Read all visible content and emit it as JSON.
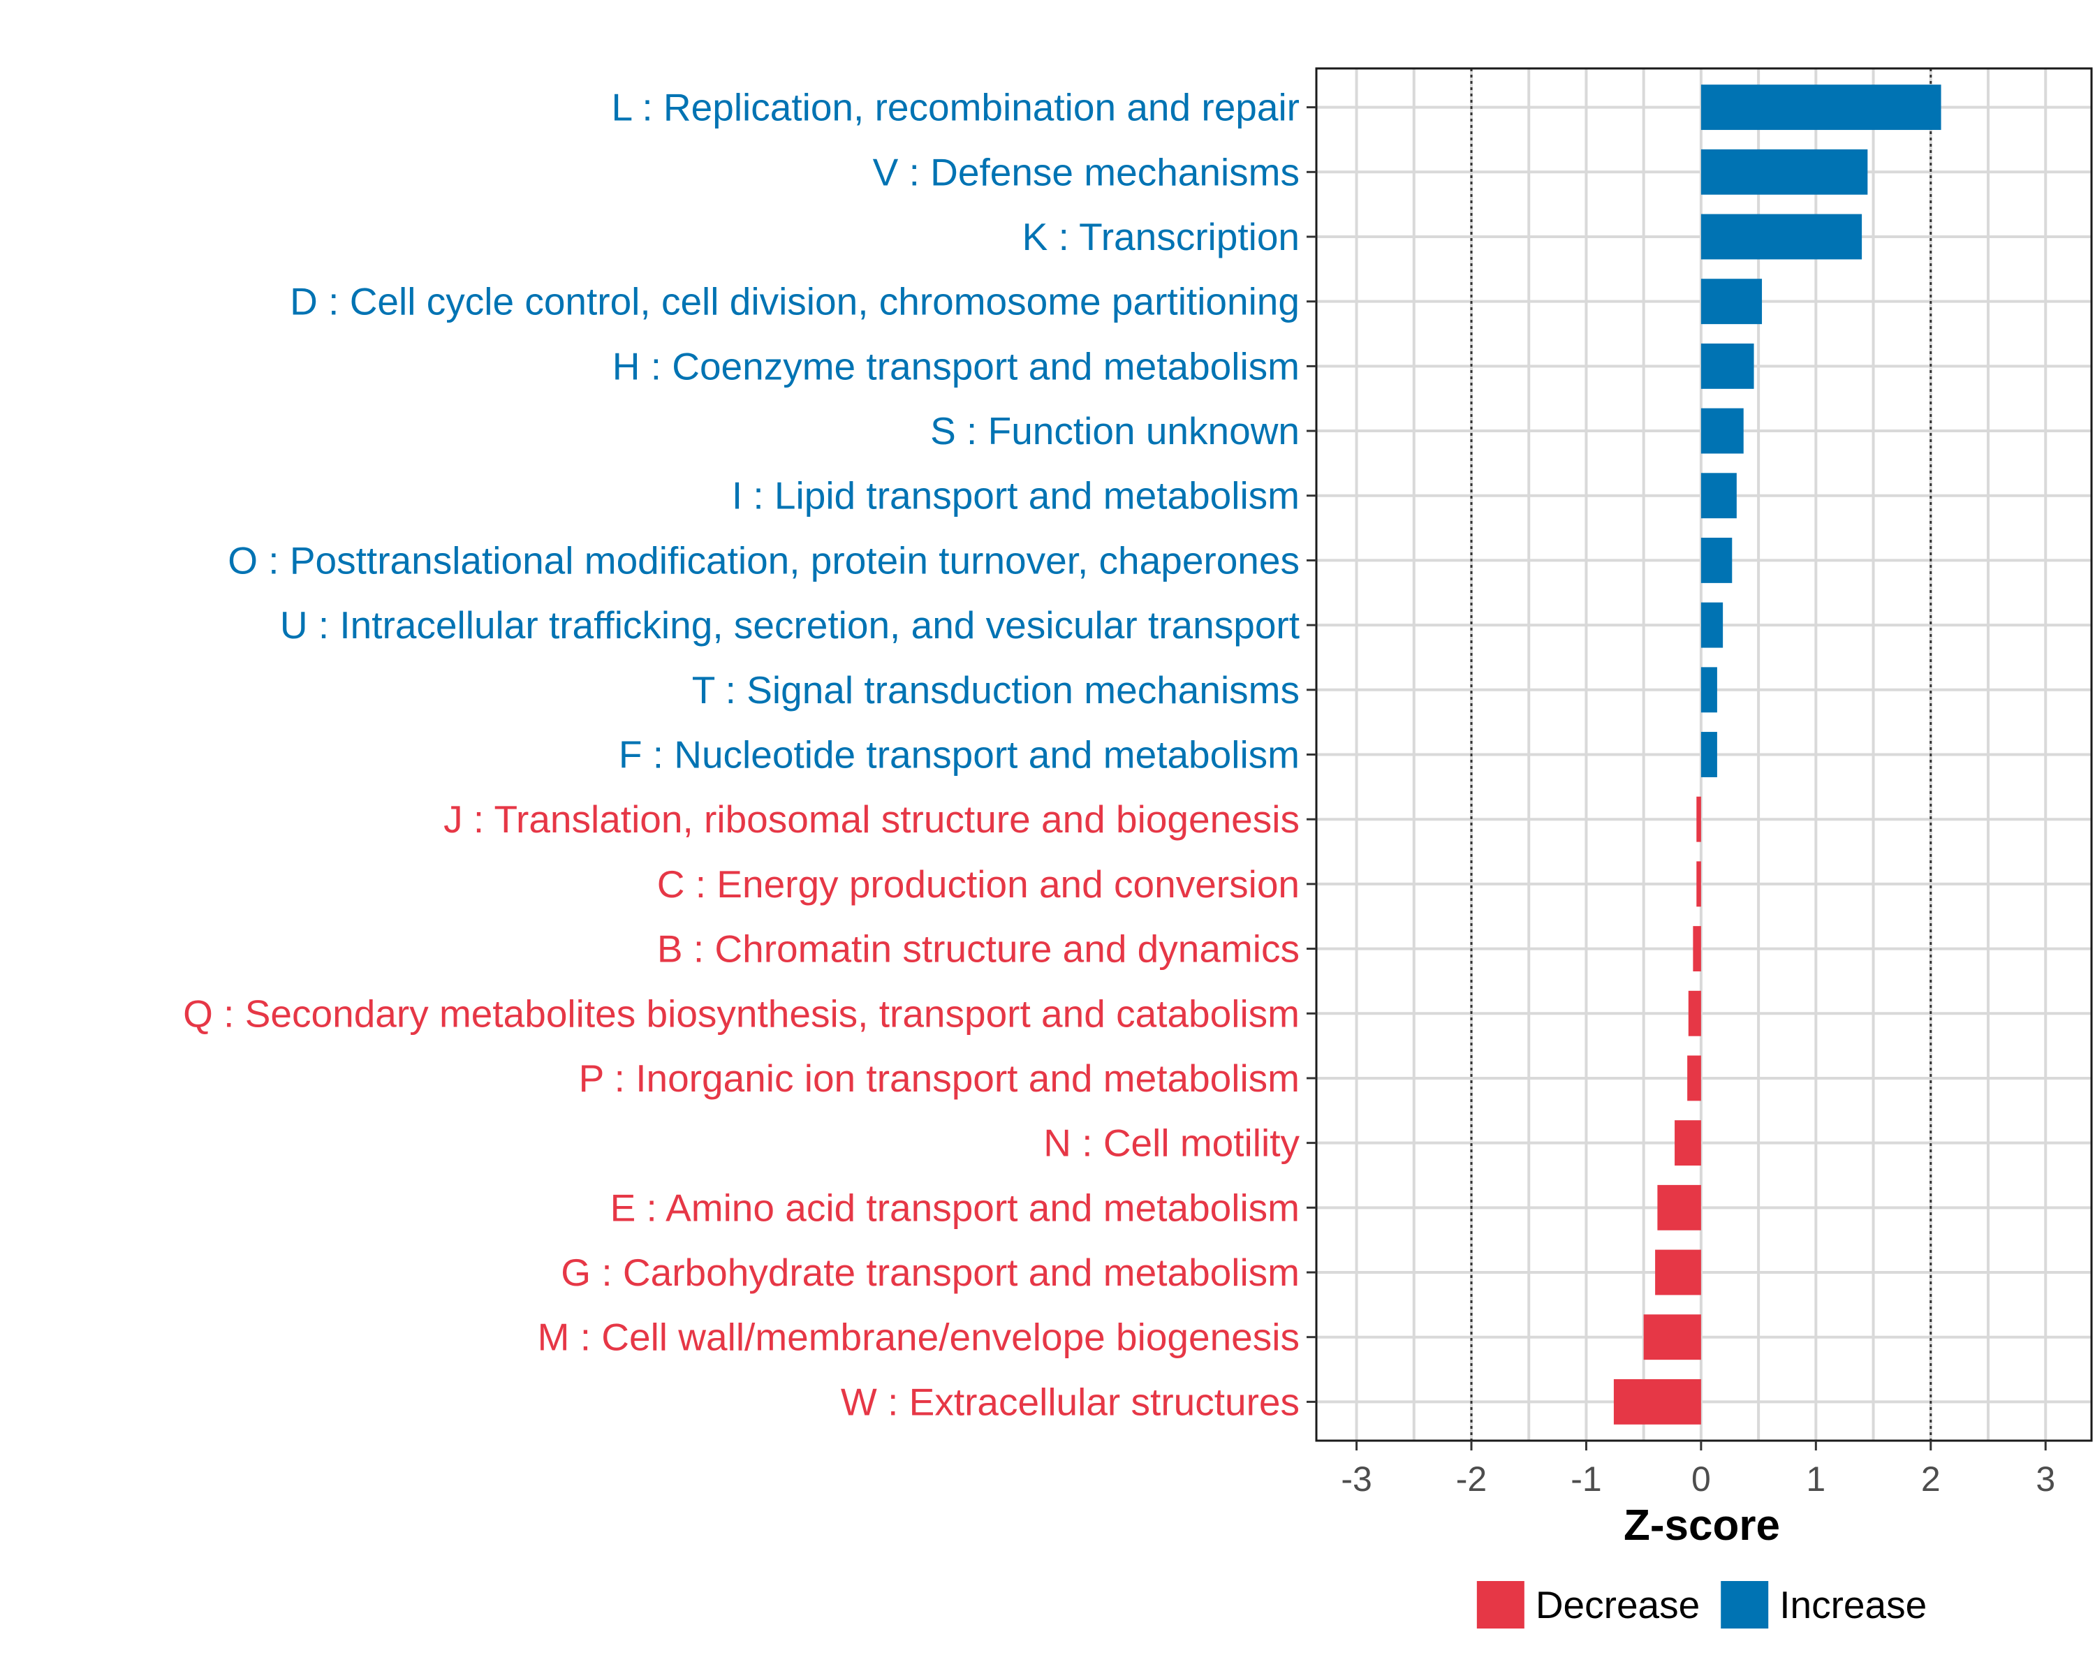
{
  "chart_data": {
    "type": "bar",
    "orientation": "horizontal",
    "xlabel": "Z-score",
    "xlim": [
      -3.35,
      3.4
    ],
    "xticks": [
      -3,
      -2,
      -1,
      0,
      1,
      2,
      3
    ],
    "xtick_labels": [
      "-3",
      "-2",
      "-1",
      "0",
      "1",
      "2",
      "3"
    ],
    "reference_lines": [
      -2,
      2
    ],
    "grid": true,
    "legend_position": "bottom",
    "colors": {
      "Increase": "#0073b3",
      "Decrease": "#e63746"
    },
    "legend": [
      {
        "label": "Decrease",
        "color": "#e63746"
      },
      {
        "label": "Increase",
        "color": "#0073b3"
      }
    ],
    "categories": [
      "L : Replication, recombination and repair",
      "V : Defense mechanisms",
      "K : Transcription",
      "D : Cell cycle control, cell division, chromosome partitioning",
      "H : Coenzyme transport and metabolism",
      "S : Function unknown",
      "I : Lipid transport and metabolism",
      "O : Posttranslational modification, protein turnover, chaperones",
      "U : Intracellular trafficking, secretion, and vesicular transport",
      "T : Signal transduction mechanisms",
      "F : Nucleotide transport and metabolism",
      "J : Translation, ribosomal structure and biogenesis",
      "C : Energy production and conversion",
      "B : Chromatin structure and dynamics",
      "Q : Secondary metabolites biosynthesis, transport and catabolism",
      "P : Inorganic ion transport and metabolism",
      "N : Cell motility",
      "E : Amino acid transport and metabolism",
      "G : Carbohydrate transport and metabolism",
      "M : Cell wall/membrane/envelope biogenesis",
      "W : Extracellular structures"
    ],
    "values": [
      2.09,
      1.45,
      1.4,
      0.53,
      0.46,
      0.37,
      0.31,
      0.27,
      0.19,
      0.14,
      0.14,
      -0.04,
      -0.04,
      -0.07,
      -0.11,
      -0.12,
      -0.23,
      -0.38,
      -0.4,
      -0.5,
      -0.76
    ],
    "groups": [
      "Increase",
      "Increase",
      "Increase",
      "Increase",
      "Increase",
      "Increase",
      "Increase",
      "Increase",
      "Increase",
      "Increase",
      "Increase",
      "Decrease",
      "Decrease",
      "Decrease",
      "Decrease",
      "Decrease",
      "Decrease",
      "Decrease",
      "Decrease",
      "Decrease",
      "Decrease"
    ]
  }
}
